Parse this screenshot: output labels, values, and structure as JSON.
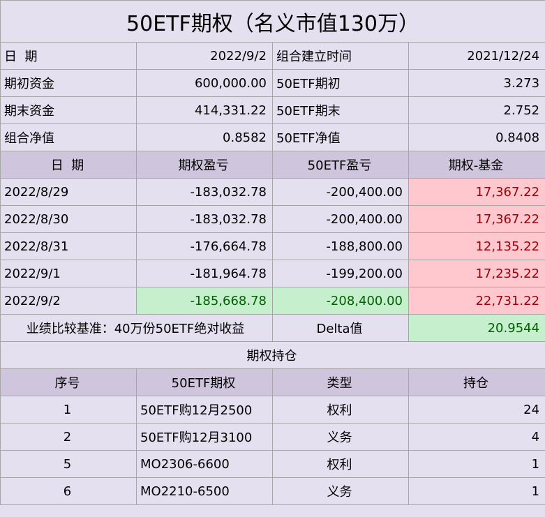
{
  "title": "50ETF期权（名义市值130万）",
  "info": {
    "date_label": "日  期",
    "date_value": "2022/9/2",
    "build_time_label": "组合建立时间",
    "build_time_value": "2021/12/24",
    "initial_fund_label": "期初资金",
    "initial_fund_value": "600,000.00",
    "etf_initial_label": "50ETF期初",
    "etf_initial_value": "3.273",
    "final_fund_label": "期末资金",
    "final_fund_value": "414,331.22",
    "etf_final_label": "50ETF期末",
    "etf_final_value": "2.752",
    "nav_label": "组合净值",
    "nav_value": "0.8582",
    "etf_nav_label": "50ETF净值",
    "etf_nav_value": "0.8408"
  },
  "pnl": {
    "headers": [
      "日  期",
      "期权盈亏",
      "50ETF盈亏",
      "期权-基金"
    ],
    "rows": [
      {
        "date": "2022/8/29",
        "option_pnl": "-183,032.78",
        "etf_pnl": "-200,400.00",
        "diff": "17,367.22"
      },
      {
        "date": "2022/8/30",
        "option_pnl": "-183,032.78",
        "etf_pnl": "-200,400.00",
        "diff": "17,367.22"
      },
      {
        "date": "2022/8/31",
        "option_pnl": "-176,664.78",
        "etf_pnl": "-188,800.00",
        "diff": "12,135.22"
      },
      {
        "date": "2022/9/1",
        "option_pnl": "-181,964.78",
        "etf_pnl": "-199,200.00",
        "diff": "17,235.22"
      },
      {
        "date": "2022/9/2",
        "option_pnl": "-185,668.78",
        "etf_pnl": "-208,400.00",
        "diff": "22,731.22"
      }
    ]
  },
  "benchmark": {
    "label": "业绩比较基准：40万份50ETF绝对收益",
    "delta_label": "Delta值",
    "delta_value": "20.9544"
  },
  "positions": {
    "section_title": "期权持仓",
    "headers": [
      "序号",
      "50ETF期权",
      "类型",
      "持仓"
    ],
    "rows": [
      {
        "no": "1",
        "option": "50ETF购12月2500",
        "type": "权利",
        "qty": "24"
      },
      {
        "no": "2",
        "option": "50ETF购12月3100",
        "type": "义务",
        "qty": "4"
      },
      {
        "no": "5",
        "option": "MO2306-6600",
        "type": "权利",
        "qty": "1"
      },
      {
        "no": "6",
        "option": "MO2210-6500",
        "type": "义务",
        "qty": "1"
      }
    ]
  },
  "colors": {
    "background": "#e4e0ef",
    "header": "#cfc6de",
    "positive_fill": "#ffc7ce",
    "positive_text": "#9c0006",
    "negative_fill": "#c6efce",
    "negative_text": "#006100"
  }
}
